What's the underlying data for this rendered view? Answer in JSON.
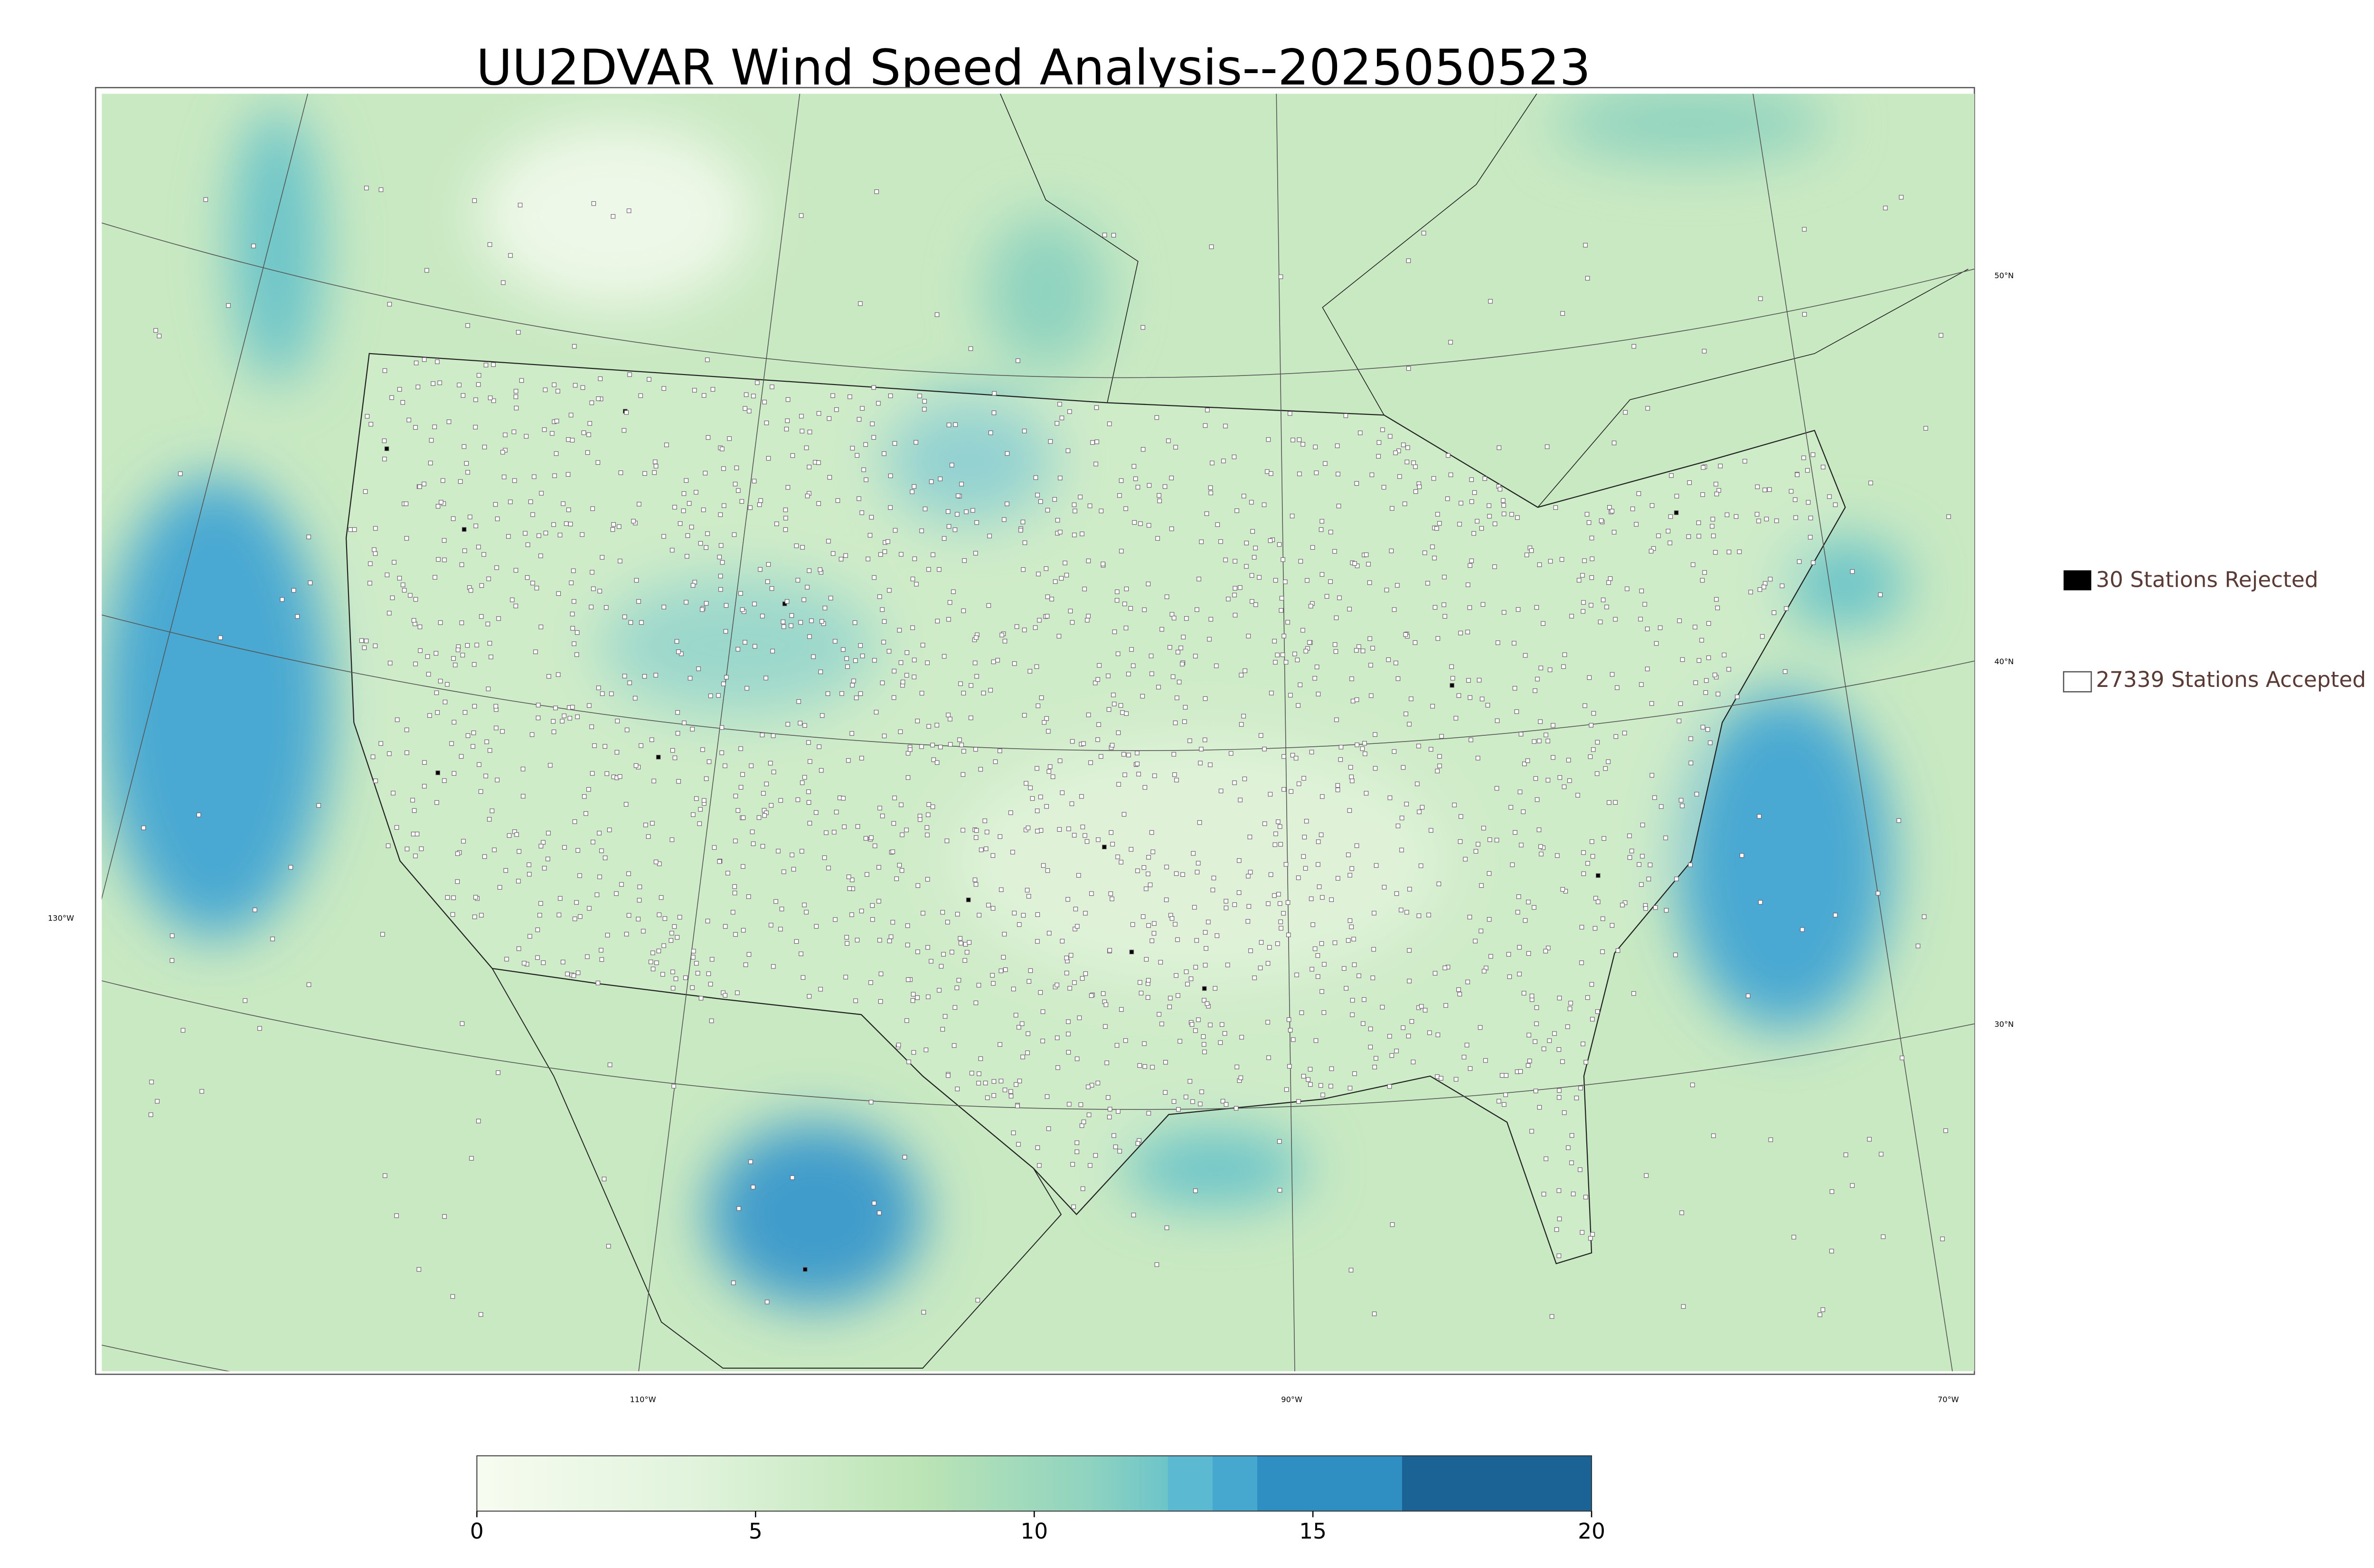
{
  "title": "UU2DVAR Wind Speed Analysis--2025050523",
  "legend": [
    {
      "label": "30 Stations Rejected"
    },
    {
      "label": "27339 Stations Accepted"
    }
  ],
  "latitude_labels": [
    "50°N",
    "40°N",
    "30°N"
  ],
  "longitude_labels": [
    "130°W",
    "110°W",
    "90°W",
    "70°W"
  ],
  "colorbar": {
    "lim": [
      0,
      20
    ],
    "ticks": [
      0,
      5,
      10,
      15,
      20
    ]
  }
}
